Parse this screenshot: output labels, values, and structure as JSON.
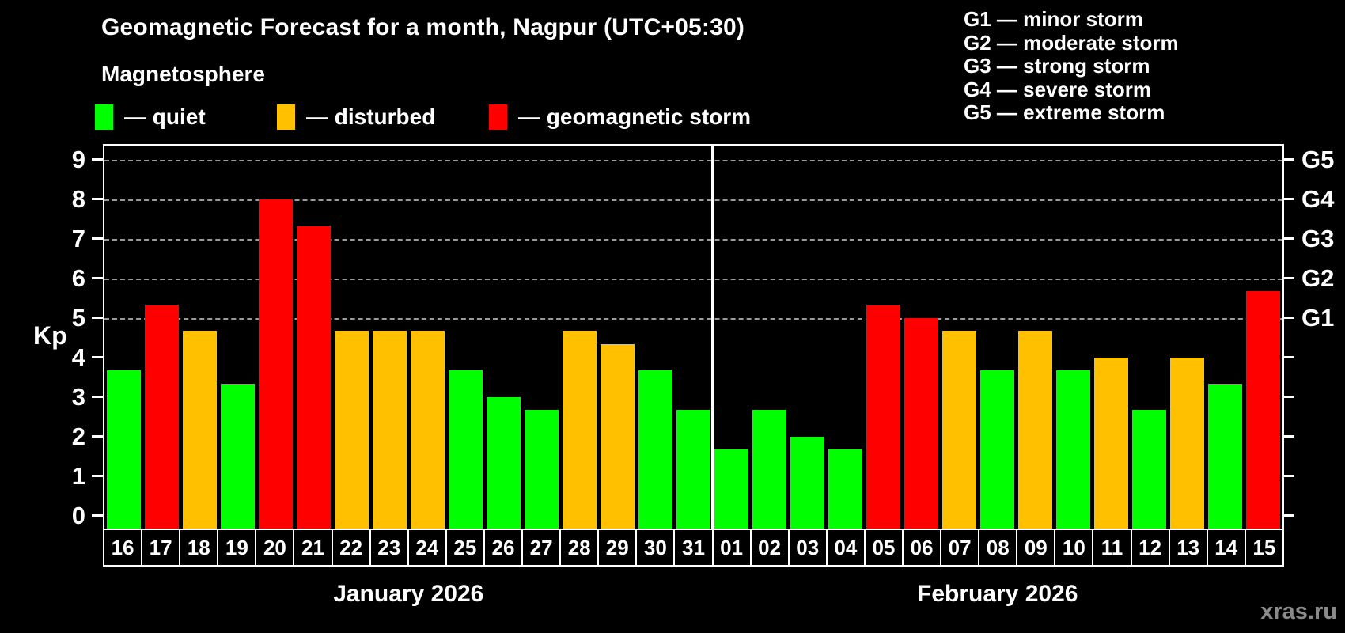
{
  "title": "Geomagnetic Forecast for a month, Nagpur (UTC+05:30)",
  "subtitle": "Magnetosphere",
  "watermark": "xras.ru",
  "legend": {
    "items": [
      {
        "name": "quiet",
        "label": "— quiet",
        "color": "#00ff00"
      },
      {
        "name": "disturbed",
        "label": "— disturbed",
        "color": "#ffc000"
      },
      {
        "name": "storm",
        "label": "— geomagnetic storm",
        "color": "#ff0000"
      }
    ]
  },
  "g_legend": {
    "lines": [
      "G1 — minor storm",
      "G2 — moderate storm",
      "G3 — strong storm",
      "G4 — severe storm",
      "G5 — extreme storm"
    ]
  },
  "chart_data": {
    "type": "bar",
    "title": "Geomagnetic Forecast for a month, Nagpur (UTC+05:30)",
    "ylabel": "Kp",
    "ylim": [
      0,
      9
    ],
    "grid": "dashed horizontal lines at Kp 5-9 only",
    "left_ticks": [
      0,
      1,
      2,
      3,
      4,
      5,
      6,
      7,
      8,
      9
    ],
    "right_axis_labels": [
      {
        "label": "G1",
        "kp": 5
      },
      {
        "label": "G2",
        "kp": 6
      },
      {
        "label": "G3",
        "kp": 7
      },
      {
        "label": "G4",
        "kp": 8
      },
      {
        "label": "G5",
        "kp": 9
      }
    ],
    "status_colors": {
      "quiet": "#00ff00",
      "disturbed": "#ffc000",
      "storm": "#ff0000"
    },
    "months": [
      {
        "label": "January 2026",
        "days": [
          {
            "day": "16",
            "kp": 3.67,
            "status": "quiet"
          },
          {
            "day": "17",
            "kp": 5.33,
            "status": "storm"
          },
          {
            "day": "18",
            "kp": 4.67,
            "status": "disturbed"
          },
          {
            "day": "19",
            "kp": 3.33,
            "status": "quiet"
          },
          {
            "day": "20",
            "kp": 8.0,
            "status": "storm"
          },
          {
            "day": "21",
            "kp": 7.33,
            "status": "storm"
          },
          {
            "day": "22",
            "kp": 4.67,
            "status": "disturbed"
          },
          {
            "day": "23",
            "kp": 4.67,
            "status": "disturbed"
          },
          {
            "day": "24",
            "kp": 4.67,
            "status": "disturbed"
          },
          {
            "day": "25",
            "kp": 3.67,
            "status": "quiet"
          },
          {
            "day": "26",
            "kp": 3.0,
            "status": "quiet"
          },
          {
            "day": "27",
            "kp": 2.67,
            "status": "quiet"
          },
          {
            "day": "28",
            "kp": 4.67,
            "status": "disturbed"
          },
          {
            "day": "29",
            "kp": 4.33,
            "status": "disturbed"
          },
          {
            "day": "30",
            "kp": 3.67,
            "status": "quiet"
          },
          {
            "day": "31",
            "kp": 2.67,
            "status": "quiet"
          }
        ]
      },
      {
        "label": "February 2026",
        "days": [
          {
            "day": "01",
            "kp": 1.67,
            "status": "quiet"
          },
          {
            "day": "02",
            "kp": 2.67,
            "status": "quiet"
          },
          {
            "day": "03",
            "kp": 2.0,
            "status": "quiet"
          },
          {
            "day": "04",
            "kp": 1.67,
            "status": "quiet"
          },
          {
            "day": "05",
            "kp": 5.33,
            "status": "storm"
          },
          {
            "day": "06",
            "kp": 5.0,
            "status": "storm"
          },
          {
            "day": "07",
            "kp": 4.67,
            "status": "disturbed"
          },
          {
            "day": "08",
            "kp": 3.67,
            "status": "quiet"
          },
          {
            "day": "09",
            "kp": 4.67,
            "status": "disturbed"
          },
          {
            "day": "10",
            "kp": 3.67,
            "status": "quiet"
          },
          {
            "day": "11",
            "kp": 4.0,
            "status": "disturbed"
          },
          {
            "day": "12",
            "kp": 2.67,
            "status": "quiet"
          },
          {
            "day": "13",
            "kp": 4.0,
            "status": "disturbed"
          },
          {
            "day": "14",
            "kp": 3.33,
            "status": "quiet"
          },
          {
            "day": "15",
            "kp": 5.67,
            "status": "storm"
          }
        ]
      }
    ]
  }
}
